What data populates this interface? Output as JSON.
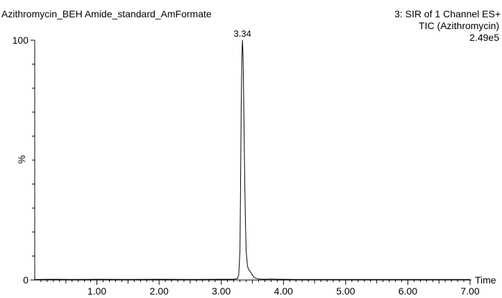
{
  "header": {
    "left_title": "Azithromycin_BEH Amide_standard_AmFormate",
    "right_line1": "3: SIR of 1 Channel ES+",
    "right_line2": "TIC (Azithromycin)",
    "right_line3": "2.49e5"
  },
  "chart_data": {
    "type": "line",
    "title": "Azithromycin_BEH Amide_standard_AmFormate",
    "xlabel": "Time",
    "ylabel": "%",
    "xlim": [
      0.0,
      7.0
    ],
    "ylim": [
      0,
      100
    ],
    "x_ticks": [
      1.0,
      2.0,
      3.0,
      4.0,
      5.0,
      6.0,
      7.0
    ],
    "x_tick_labels": [
      "1.00",
      "2.00",
      "3.00",
      "4.00",
      "5.00",
      "6.00",
      "7.00"
    ],
    "y_ticks": [
      0,
      100
    ],
    "y_tick_labels": [
      "0",
      "100"
    ],
    "grid": false,
    "annotations": [
      {
        "x": 3.34,
        "y": 100,
        "text": "3.34"
      }
    ],
    "series": [
      {
        "x": [
          0.0,
          0.3,
          0.6,
          1.0,
          1.5,
          2.0,
          2.5,
          3.0,
          3.2,
          3.26,
          3.28,
          3.3,
          3.31,
          3.32,
          3.33,
          3.34,
          3.35,
          3.36,
          3.37,
          3.38,
          3.39,
          3.4,
          3.42,
          3.44,
          3.46,
          3.48,
          3.5,
          3.52,
          3.55,
          3.6,
          3.7,
          3.8,
          3.9,
          4.0,
          4.2,
          4.5,
          5.0,
          5.5,
          6.0,
          6.5,
          7.0
        ],
        "y": [
          0.2,
          0.3,
          0.2,
          0.3,
          0.2,
          0.3,
          0.2,
          0.3,
          0.3,
          0.6,
          2,
          12,
          40,
          72,
          92,
          100,
          94,
          76,
          55,
          36,
          22,
          12,
          6,
          4.2,
          3.8,
          3,
          2,
          1.3,
          0.8,
          0.4,
          0.3,
          0.4,
          0.3,
          0.3,
          0.2,
          0.2,
          0.2,
          0.2,
          0.2,
          0.2,
          0.2
        ]
      }
    ]
  }
}
